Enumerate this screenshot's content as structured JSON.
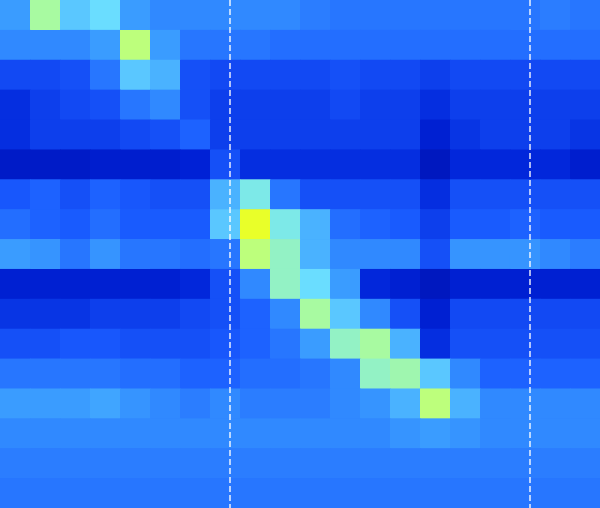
{
  "chart_data": {
    "type": "heatmap",
    "xlim": [
      0,
      20
    ],
    "ylim": [
      0,
      17
    ],
    "tick_labels": false,
    "color_range": [
      0,
      1
    ],
    "vlines": [
      7.67,
      17.67
    ],
    "cells": [
      [
        0.5,
        0.8,
        0.6,
        0.65,
        0.5,
        0.45,
        0.45,
        0.45,
        0.45,
        0.45,
        0.42,
        0.4,
        0.4,
        0.4,
        0.4,
        0.4,
        0.4,
        0.4,
        0.42,
        0.4
      ],
      [
        0.45,
        0.45,
        0.45,
        0.5,
        0.85,
        0.5,
        0.4,
        0.4,
        0.4,
        0.38,
        0.38,
        0.38,
        0.38,
        0.38,
        0.38,
        0.38,
        0.38,
        0.38,
        0.38,
        0.38
      ],
      [
        0.28,
        0.28,
        0.3,
        0.4,
        0.6,
        0.55,
        0.3,
        0.28,
        0.28,
        0.28,
        0.28,
        0.3,
        0.28,
        0.28,
        0.25,
        0.28,
        0.28,
        0.28,
        0.28,
        0.28
      ],
      [
        0.2,
        0.25,
        0.28,
        0.3,
        0.4,
        0.45,
        0.3,
        0.25,
        0.25,
        0.25,
        0.25,
        0.28,
        0.25,
        0.25,
        0.2,
        0.25,
        0.25,
        0.25,
        0.25,
        0.25
      ],
      [
        0.2,
        0.25,
        0.25,
        0.25,
        0.28,
        0.3,
        0.35,
        0.25,
        0.25,
        0.25,
        0.25,
        0.25,
        0.25,
        0.25,
        0.15,
        0.22,
        0.25,
        0.25,
        0.25,
        0.22
      ],
      [
        0.12,
        0.12,
        0.12,
        0.14,
        0.14,
        0.14,
        0.16,
        0.3,
        0.2,
        0.2,
        0.2,
        0.2,
        0.2,
        0.2,
        0.1,
        0.18,
        0.18,
        0.18,
        0.18,
        0.14
      ],
      [
        0.32,
        0.35,
        0.3,
        0.35,
        0.32,
        0.3,
        0.3,
        0.55,
        0.7,
        0.4,
        0.3,
        0.3,
        0.3,
        0.3,
        0.2,
        0.3,
        0.3,
        0.3,
        0.3,
        0.3
      ],
      [
        0.38,
        0.35,
        0.33,
        0.38,
        0.33,
        0.33,
        0.33,
        0.6,
        0.95,
        0.7,
        0.55,
        0.38,
        0.35,
        0.33,
        0.25,
        0.33,
        0.33,
        0.35,
        0.33,
        0.33
      ],
      [
        0.5,
        0.48,
        0.4,
        0.48,
        0.4,
        0.4,
        0.38,
        0.4,
        0.85,
        0.75,
        0.55,
        0.45,
        0.45,
        0.45,
        0.3,
        0.48,
        0.48,
        0.48,
        0.45,
        0.42
      ],
      [
        0.15,
        0.15,
        0.15,
        0.15,
        0.15,
        0.15,
        0.18,
        0.3,
        0.45,
        0.75,
        0.65,
        0.5,
        0.18,
        0.15,
        0.1,
        0.15,
        0.15,
        0.15,
        0.15,
        0.15
      ],
      [
        0.22,
        0.22,
        0.22,
        0.25,
        0.25,
        0.25,
        0.28,
        0.3,
        0.35,
        0.45,
        0.8,
        0.6,
        0.45,
        0.3,
        0.15,
        0.28,
        0.28,
        0.28,
        0.28,
        0.28
      ],
      [
        0.3,
        0.3,
        0.32,
        0.32,
        0.3,
        0.3,
        0.3,
        0.32,
        0.35,
        0.4,
        0.5,
        0.75,
        0.8,
        0.55,
        0.2,
        0.3,
        0.3,
        0.3,
        0.3,
        0.3
      ],
      [
        0.4,
        0.4,
        0.4,
        0.4,
        0.38,
        0.38,
        0.35,
        0.35,
        0.38,
        0.38,
        0.4,
        0.45,
        0.75,
        0.78,
        0.6,
        0.45,
        0.35,
        0.35,
        0.35,
        0.35
      ],
      [
        0.5,
        0.5,
        0.5,
        0.52,
        0.48,
        0.45,
        0.42,
        0.45,
        0.42,
        0.42,
        0.42,
        0.45,
        0.48,
        0.55,
        0.85,
        0.55,
        0.45,
        0.45,
        0.45,
        0.45
      ],
      [
        0.45,
        0.45,
        0.45,
        0.45,
        0.45,
        0.45,
        0.45,
        0.45,
        0.45,
        0.45,
        0.45,
        0.45,
        0.45,
        0.48,
        0.5,
        0.48,
        0.45,
        0.45,
        0.45,
        0.45
      ],
      [
        0.42,
        0.42,
        0.42,
        0.42,
        0.42,
        0.42,
        0.42,
        0.42,
        0.42,
        0.42,
        0.42,
        0.42,
        0.42,
        0.42,
        0.42,
        0.42,
        0.42,
        0.42,
        0.42,
        0.42
      ],
      [
        0.4,
        0.4,
        0.4,
        0.4,
        0.4,
        0.4,
        0.4,
        0.4,
        0.4,
        0.4,
        0.4,
        0.4,
        0.4,
        0.4,
        0.4,
        0.4,
        0.4,
        0.4,
        0.4,
        0.4
      ]
    ]
  }
}
